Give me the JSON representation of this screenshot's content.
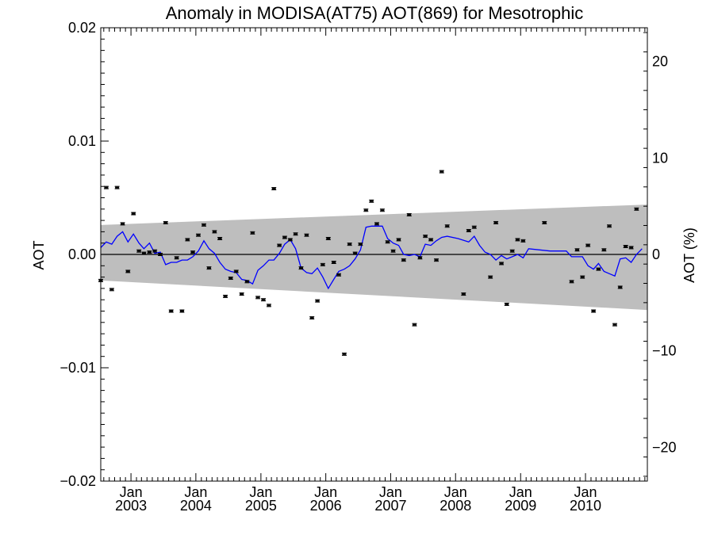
{
  "chart_data": {
    "type": "scatter",
    "title": "Anomaly in MODISA(AT75) AOT(869) for Mesotrophic",
    "ylabel": "AOT",
    "ylabel_right": "AOT (%)",
    "ylim": [
      -0.02,
      0.02
    ],
    "ylim_right": [
      -23.5,
      23.5
    ],
    "xlim": [
      "2002-07-15",
      "2010-12-15"
    ],
    "yticks": [
      {
        "value": 0.02,
        "label": "0.02"
      },
      {
        "value": 0.01,
        "label": "0.01"
      },
      {
        "value": 0.0,
        "label": "0.00"
      },
      {
        "value": -0.01,
        "label": "−0.01"
      },
      {
        "value": -0.02,
        "label": "−0.02"
      }
    ],
    "yticks_right": [
      {
        "value": 20,
        "label": "20"
      },
      {
        "value": 10,
        "label": "10"
      },
      {
        "value": 0,
        "label": "0"
      },
      {
        "value": -10,
        "label": "−10"
      },
      {
        "value": -20,
        "label": "−20"
      }
    ],
    "xticks": [
      {
        "date": "2003-01-01",
        "month": "Jan",
        "year": "2003"
      },
      {
        "date": "2004-01-01",
        "month": "Jan",
        "year": "2004"
      },
      {
        "date": "2005-01-01",
        "month": "Jan",
        "year": "2005"
      },
      {
        "date": "2006-01-01",
        "month": "Jan",
        "year": "2006"
      },
      {
        "date": "2007-01-01",
        "month": "Jan",
        "year": "2007"
      },
      {
        "date": "2008-01-01",
        "month": "Jan",
        "year": "2008"
      },
      {
        "date": "2009-01-01",
        "month": "Jan",
        "year": "2009"
      },
      {
        "date": "2010-01-01",
        "month": "Jan",
        "year": "2010"
      }
    ],
    "grid": false,
    "colors": {
      "points": "#000000",
      "line": "#0000ff",
      "band": "#bebebe",
      "zero_line": "#000000"
    },
    "band": {
      "start": {
        "x": "2002-07-15",
        "upper": 0.0026,
        "lower": -0.0023
      },
      "end": {
        "x": "2010-12-15",
        "upper": 0.0044,
        "lower": -0.0049
      }
    },
    "points": [
      {
        "x": "2002-07-15",
        "y": -0.0023
      },
      {
        "x": "2002-08-15",
        "y": 0.0059
      },
      {
        "x": "2002-09-15",
        "y": -0.0031
      },
      {
        "x": "2002-10-15",
        "y": 0.0059
      },
      {
        "x": "2002-11-15",
        "y": 0.0027
      },
      {
        "x": "2002-12-15",
        "y": -0.0015
      },
      {
        "x": "2003-01-15",
        "y": 0.0036
      },
      {
        "x": "2003-02-15",
        "y": 0.0003
      },
      {
        "x": "2003-03-15",
        "y": 0.0001
      },
      {
        "x": "2003-04-15",
        "y": 0.0002
      },
      {
        "x": "2003-05-15",
        "y": 0.0003
      },
      {
        "x": "2003-06-15",
        "y": 0.0
      },
      {
        "x": "2003-07-15",
        "y": 0.0028
      },
      {
        "x": "2003-08-15",
        "y": -0.005
      },
      {
        "x": "2003-09-15",
        "y": -0.0003
      },
      {
        "x": "2003-10-15",
        "y": -0.005
      },
      {
        "x": "2003-11-15",
        "y": 0.0013
      },
      {
        "x": "2003-12-15",
        "y": 0.0002
      },
      {
        "x": "2004-01-15",
        "y": 0.0017
      },
      {
        "x": "2004-02-15",
        "y": 0.0026
      },
      {
        "x": "2004-03-15",
        "y": -0.0012
      },
      {
        "x": "2004-04-15",
        "y": 0.002
      },
      {
        "x": "2004-05-15",
        "y": 0.0014
      },
      {
        "x": "2004-06-15",
        "y": -0.0037
      },
      {
        "x": "2004-07-15",
        "y": -0.0021
      },
      {
        "x": "2004-08-15",
        "y": -0.0015
      },
      {
        "x": "2004-09-15",
        "y": -0.0035
      },
      {
        "x": "2004-10-15",
        "y": -0.0024
      },
      {
        "x": "2004-11-15",
        "y": 0.0019
      },
      {
        "x": "2004-12-15",
        "y": -0.0038
      },
      {
        "x": "2005-01-15",
        "y": -0.004
      },
      {
        "x": "2005-02-15",
        "y": -0.0045
      },
      {
        "x": "2005-03-15",
        "y": 0.0058
      },
      {
        "x": "2005-04-15",
        "y": 0.0008
      },
      {
        "x": "2005-05-15",
        "y": 0.0015
      },
      {
        "x": "2005-06-15",
        "y": 0.0013
      },
      {
        "x": "2005-07-15",
        "y": 0.0018
      },
      {
        "x": "2005-08-15",
        "y": -0.0012
      },
      {
        "x": "2005-09-15",
        "y": 0.0017
      },
      {
        "x": "2005-10-15",
        "y": -0.0056
      },
      {
        "x": "2005-11-15",
        "y": -0.0041
      },
      {
        "x": "2005-12-15",
        "y": -0.0009
      },
      {
        "x": "2006-01-15",
        "y": 0.0014
      },
      {
        "x": "2006-02-15",
        "y": -0.0007
      },
      {
        "x": "2006-03-15",
        "y": -0.0018
      },
      {
        "x": "2006-04-15",
        "y": -0.0088
      },
      {
        "x": "2006-05-15",
        "y": 0.0009
      },
      {
        "x": "2006-06-15",
        "y": 0.0001
      },
      {
        "x": "2006-07-15",
        "y": 0.0009
      },
      {
        "x": "2006-08-15",
        "y": 0.0039
      },
      {
        "x": "2006-09-15",
        "y": 0.0047
      },
      {
        "x": "2006-10-15",
        "y": 0.0027
      },
      {
        "x": "2006-11-15",
        "y": 0.0039
      },
      {
        "x": "2006-12-15",
        "y": 0.0011
      },
      {
        "x": "2007-01-15",
        "y": 0.0003
      },
      {
        "x": "2007-02-15",
        "y": 0.0013
      },
      {
        "x": "2007-03-15",
        "y": -0.0005
      },
      {
        "x": "2007-04-15",
        "y": 0.0035
      },
      {
        "x": "2007-05-15",
        "y": -0.0062
      },
      {
        "x": "2007-06-15",
        "y": -0.0003
      },
      {
        "x": "2007-07-15",
        "y": 0.0016
      },
      {
        "x": "2007-08-15",
        "y": 0.0013
      },
      {
        "x": "2007-09-15",
        "y": -0.0005
      },
      {
        "x": "2007-10-15",
        "y": 0.0073
      },
      {
        "x": "2007-11-15",
        "y": 0.0025
      },
      {
        "x": "2008-02-15",
        "y": -0.0035
      },
      {
        "x": "2008-03-15",
        "y": 0.0021
      },
      {
        "x": "2008-04-15",
        "y": 0.0024
      },
      {
        "x": "2008-07-15",
        "y": -0.002
      },
      {
        "x": "2008-08-15",
        "y": 0.0028
      },
      {
        "x": "2008-09-15",
        "y": -0.0008
      },
      {
        "x": "2008-10-15",
        "y": -0.0044
      },
      {
        "x": "2008-11-15",
        "y": 0.0003
      },
      {
        "x": "2008-12-15",
        "y": 0.0013
      },
      {
        "x": "2009-01-15",
        "y": 0.0012
      },
      {
        "x": "2009-05-15",
        "y": 0.0028
      },
      {
        "x": "2009-10-15",
        "y": -0.0024
      },
      {
        "x": "2009-11-15",
        "y": 0.0004
      },
      {
        "x": "2009-12-15",
        "y": -0.002
      },
      {
        "x": "2010-01-15",
        "y": 0.0008
      },
      {
        "x": "2010-02-15",
        "y": -0.005
      },
      {
        "x": "2010-03-15",
        "y": -0.0013
      },
      {
        "x": "2010-04-15",
        "y": 0.0004
      },
      {
        "x": "2010-05-15",
        "y": 0.0025
      },
      {
        "x": "2010-06-15",
        "y": -0.0062
      },
      {
        "x": "2010-07-15",
        "y": -0.0029
      },
      {
        "x": "2010-08-15",
        "y": 0.0007
      },
      {
        "x": "2010-09-15",
        "y": 0.0006
      },
      {
        "x": "2010-10-15",
        "y": 0.004
      }
    ],
    "line": [
      {
        "x": "2002-07-15",
        "y": 0.0006
      },
      {
        "x": "2002-08-15",
        "y": 0.0011
      },
      {
        "x": "2002-09-15",
        "y": 0.0009
      },
      {
        "x": "2002-10-15",
        "y": 0.0016
      },
      {
        "x": "2002-11-15",
        "y": 0.002
      },
      {
        "x": "2002-12-15",
        "y": 0.0011
      },
      {
        "x": "2003-01-15",
        "y": 0.0018
      },
      {
        "x": "2003-02-15",
        "y": 0.001
      },
      {
        "x": "2003-03-15",
        "y": 0.0005
      },
      {
        "x": "2003-04-15",
        "y": 0.001
      },
      {
        "x": "2003-05-15",
        "y": 0.0001
      },
      {
        "x": "2003-06-15",
        "y": 0.0002
      },
      {
        "x": "2003-07-15",
        "y": -0.0009
      },
      {
        "x": "2003-08-15",
        "y": -0.0007
      },
      {
        "x": "2003-09-15",
        "y": -0.0007
      },
      {
        "x": "2003-10-15",
        "y": -0.0005
      },
      {
        "x": "2003-11-15",
        "y": -0.0005
      },
      {
        "x": "2003-12-15",
        "y": -0.0002
      },
      {
        "x": "2004-01-15",
        "y": 0.0003
      },
      {
        "x": "2004-02-15",
        "y": 0.0012
      },
      {
        "x": "2004-03-15",
        "y": 0.0005
      },
      {
        "x": "2004-04-15",
        "y": 0.0001
      },
      {
        "x": "2004-05-15",
        "y": -0.0007
      },
      {
        "x": "2004-06-15",
        "y": -0.0013
      },
      {
        "x": "2004-07-15",
        "y": -0.0015
      },
      {
        "x": "2004-08-15",
        "y": -0.0016
      },
      {
        "x": "2004-09-15",
        "y": -0.0022
      },
      {
        "x": "2004-10-15",
        "y": -0.0023
      },
      {
        "x": "2004-11-15",
        "y": -0.0026
      },
      {
        "x": "2004-12-15",
        "y": -0.0014
      },
      {
        "x": "2005-01-15",
        "y": -0.001
      },
      {
        "x": "2005-02-15",
        "y": -0.0005
      },
      {
        "x": "2005-03-15",
        "y": -0.0005
      },
      {
        "x": "2005-04-15",
        "y": 0.0001
      },
      {
        "x": "2005-05-15",
        "y": 0.0009
      },
      {
        "x": "2005-06-15",
        "y": 0.0013
      },
      {
        "x": "2005-07-15",
        "y": 0.0005
      },
      {
        "x": "2005-08-15",
        "y": -0.0012
      },
      {
        "x": "2005-09-15",
        "y": -0.0016
      },
      {
        "x": "2005-10-15",
        "y": -0.0017
      },
      {
        "x": "2005-11-15",
        "y": -0.0012
      },
      {
        "x": "2005-12-15",
        "y": -0.002
      },
      {
        "x": "2006-01-15",
        "y": -0.003
      },
      {
        "x": "2006-02-15",
        "y": -0.0022
      },
      {
        "x": "2006-03-15",
        "y": -0.0015
      },
      {
        "x": "2006-04-15",
        "y": -0.0013
      },
      {
        "x": "2006-05-15",
        "y": -0.001
      },
      {
        "x": "2006-06-15",
        "y": -0.0004
      },
      {
        "x": "2006-07-15",
        "y": 0.0004
      },
      {
        "x": "2006-08-15",
        "y": 0.0024
      },
      {
        "x": "2006-09-15",
        "y": 0.0025
      },
      {
        "x": "2006-10-15",
        "y": 0.0025
      },
      {
        "x": "2006-11-15",
        "y": 0.0025
      },
      {
        "x": "2006-12-15",
        "y": 0.0014
      },
      {
        "x": "2007-01-15",
        "y": 0.001
      },
      {
        "x": "2007-02-15",
        "y": 0.0008
      },
      {
        "x": "2007-03-15",
        "y": 0.0
      },
      {
        "x": "2007-04-15",
        "y": -0.0001
      },
      {
        "x": "2007-05-15",
        "y": 0.0
      },
      {
        "x": "2007-06-15",
        "y": -0.0002
      },
      {
        "x": "2007-07-15",
        "y": 0.0009
      },
      {
        "x": "2007-08-15",
        "y": 0.0008
      },
      {
        "x": "2007-09-15",
        "y": 0.0012
      },
      {
        "x": "2007-10-15",
        "y": 0.0015
      },
      {
        "x": "2007-11-15",
        "y": 0.0016
      },
      {
        "x": "2008-01-15",
        "y": 0.0014
      },
      {
        "x": "2008-03-15",
        "y": 0.0011
      },
      {
        "x": "2008-04-15",
        "y": 0.0016
      },
      {
        "x": "2008-05-15",
        "y": 0.0008
      },
      {
        "x": "2008-06-15",
        "y": 0.0002
      },
      {
        "x": "2008-07-15",
        "y": 0.0
      },
      {
        "x": "2008-08-15",
        "y": -0.0005
      },
      {
        "x": "2008-09-15",
        "y": -0.0001
      },
      {
        "x": "2008-10-15",
        "y": -0.0004
      },
      {
        "x": "2008-11-15",
        "y": -0.0002
      },
      {
        "x": "2008-12-15",
        "y": 0.0
      },
      {
        "x": "2009-01-15",
        "y": -0.0003
      },
      {
        "x": "2009-02-15",
        "y": 0.0005
      },
      {
        "x": "2009-06-15",
        "y": 0.0003
      },
      {
        "x": "2009-09-15",
        "y": 0.0003
      },
      {
        "x": "2009-10-15",
        "y": -0.0002
      },
      {
        "x": "2009-11-15",
        "y": -0.0002
      },
      {
        "x": "2009-12-15",
        "y": -0.0002
      },
      {
        "x": "2010-01-15",
        "y": -0.001
      },
      {
        "x": "2010-02-15",
        "y": -0.0013
      },
      {
        "x": "2010-03-15",
        "y": -0.0008
      },
      {
        "x": "2010-04-15",
        "y": -0.0015
      },
      {
        "x": "2010-05-15",
        "y": -0.0017
      },
      {
        "x": "2010-06-15",
        "y": -0.0019
      },
      {
        "x": "2010-07-15",
        "y": -0.0004
      },
      {
        "x": "2010-08-15",
        "y": -0.0003
      },
      {
        "x": "2010-09-15",
        "y": -0.0007
      },
      {
        "x": "2010-10-15",
        "y": 0.0
      },
      {
        "x": "2010-11-15",
        "y": 0.0005
      }
    ]
  }
}
